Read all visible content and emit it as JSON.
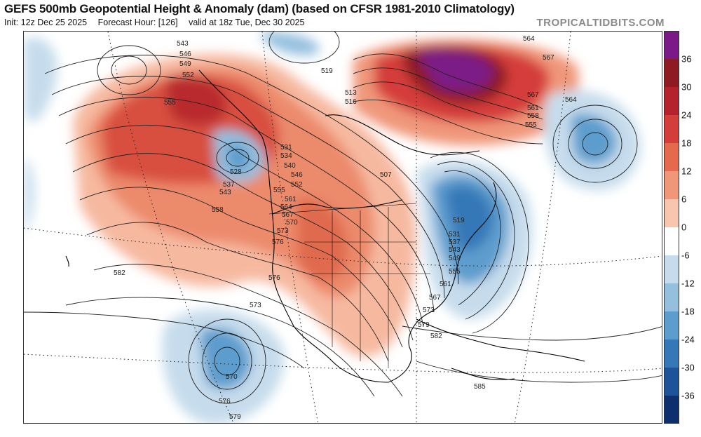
{
  "header": {
    "title": "GEFS 500mb Geopotential Height & Anomaly (dam) (based on CFSR 1981-2010 Climatology)",
    "init": "Init: 12z Dec 25 2025",
    "forecast_hour": "Forecast Hour: [126]",
    "valid": "valid at 18z Tue, Dec 30 2025",
    "brand": "TROPICALTIDBITS.COM"
  },
  "colorbar": {
    "ticks": [
      "36",
      "30",
      "24",
      "18",
      "12",
      "6",
      "0",
      "-6",
      "-12",
      "-18",
      "-24",
      "-30",
      "-36"
    ],
    "colors": [
      "#7b1a86",
      "#8e1b22",
      "#b4222c",
      "#d43e3a",
      "#e4694d",
      "#f0977a",
      "#f8c6ae",
      "#ffffff",
      "#c6dcec",
      "#94c0de",
      "#5d9dcd",
      "#3478b7",
      "#1d5398",
      "#0e2f6e"
    ]
  },
  "contour_labels": [
    {
      "id": "543",
      "text": "543"
    },
    {
      "id": "546",
      "text": "546"
    },
    {
      "id": "549",
      "text": "549"
    },
    {
      "id": "552",
      "text": "552"
    },
    {
      "id": "555a",
      "text": "555"
    },
    {
      "id": "531",
      "text": "531"
    },
    {
      "id": "534",
      "text": "534"
    },
    {
      "id": "528",
      "text": "528"
    },
    {
      "id": "537",
      "text": "537"
    },
    {
      "id": "543b",
      "text": "543"
    },
    {
      "id": "540",
      "text": "540"
    },
    {
      "id": "546b",
      "text": "546"
    },
    {
      "id": "552b",
      "text": "552"
    },
    {
      "id": "555b",
      "text": "555"
    },
    {
      "id": "561",
      "text": "561"
    },
    {
      "id": "564b",
      "text": "564"
    },
    {
      "id": "567b",
      "text": "567"
    },
    {
      "id": "570",
      "text": "570"
    },
    {
      "id": "573",
      "text": "573"
    },
    {
      "id": "576",
      "text": "576"
    },
    {
      "id": "558",
      "text": "558"
    },
    {
      "id": "582",
      "text": "582"
    },
    {
      "id": "576b",
      "text": "576"
    },
    {
      "id": "573b",
      "text": "573"
    },
    {
      "id": "570b",
      "text": "570"
    },
    {
      "id": "576c",
      "text": "576"
    },
    {
      "id": "579",
      "text": "579"
    },
    {
      "id": "519",
      "text": "519"
    },
    {
      "id": "513",
      "text": "513"
    },
    {
      "id": "516",
      "text": "516"
    },
    {
      "id": "507",
      "text": "507"
    },
    {
      "id": "564",
      "text": "564"
    },
    {
      "id": "567",
      "text": "567"
    },
    {
      "id": "567c",
      "text": "567"
    },
    {
      "id": "561c",
      "text": "561"
    },
    {
      "id": "558c",
      "text": "558"
    },
    {
      "id": "555c",
      "text": "555"
    },
    {
      "id": "564c",
      "text": "564"
    },
    {
      "id": "519e",
      "text": "519"
    },
    {
      "id": "531e",
      "text": "531"
    },
    {
      "id": "537e",
      "text": "537"
    },
    {
      "id": "543e",
      "text": "543"
    },
    {
      "id": "549e",
      "text": "549"
    },
    {
      "id": "555e",
      "text": "555"
    },
    {
      "id": "561e",
      "text": "561"
    },
    {
      "id": "567e",
      "text": "567"
    },
    {
      "id": "573e",
      "text": "573"
    },
    {
      "id": "579e",
      "text": "579"
    },
    {
      "id": "582e",
      "text": "582"
    },
    {
      "id": "585",
      "text": "585"
    }
  ]
}
